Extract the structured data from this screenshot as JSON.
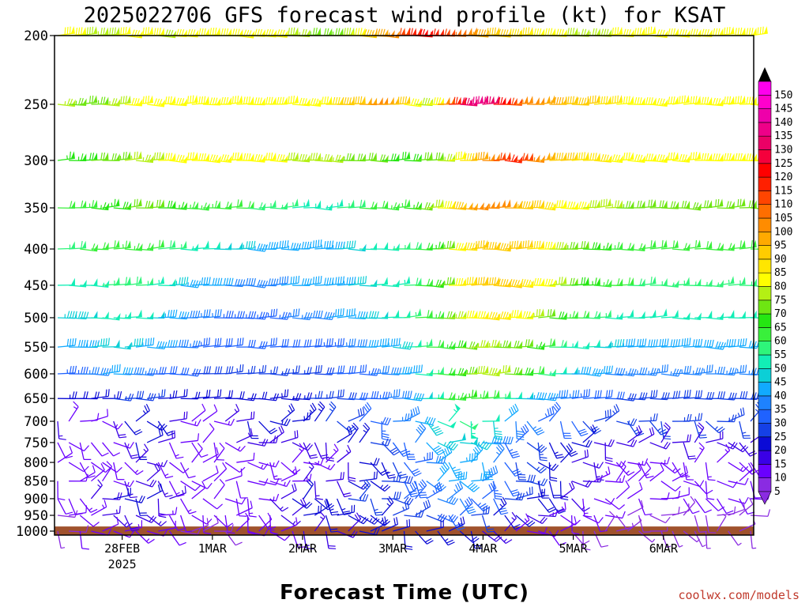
{
  "chart_data": {
    "type": "wind-barb-time-height",
    "title": "2025022706 GFS forecast wind profile (kt) for KSAT",
    "xlabel": "Forecast Time (UTC)",
    "ylabel": "",
    "credit": "coolwx.com/models",
    "x_hours_range": [
      0,
      186
    ],
    "x_ticks": [
      {
        "label": "28FEB",
        "sublabel": "2025",
        "hour": 18
      },
      {
        "label": "1MAR",
        "hour": 42
      },
      {
        "label": "2MAR",
        "hour": 66
      },
      {
        "label": "3MAR",
        "hour": 90
      },
      {
        "label": "4MAR",
        "hour": 114
      },
      {
        "label": "5MAR",
        "hour": 138
      },
      {
        "label": "6MAR",
        "hour": 162
      }
    ],
    "y_levels_hPa": [
      200,
      250,
      300,
      350,
      400,
      450,
      500,
      550,
      600,
      650,
      700,
      750,
      800,
      850,
      900,
      950,
      1000
    ],
    "ylim": [
      200,
      1000
    ],
    "colorbar": {
      "unit": "kt",
      "ticks": [
        5,
        10,
        15,
        20,
        25,
        30,
        35,
        40,
        45,
        50,
        55,
        60,
        65,
        70,
        75,
        80,
        85,
        90,
        95,
        100,
        105,
        110,
        115,
        120,
        125,
        130,
        135,
        140,
        145,
        150
      ],
      "colors": [
        "#8a2be2",
        "#6a00ff",
        "#3a00e6",
        "#0b0bd6",
        "#1540e6",
        "#1f62ff",
        "#1e82ff",
        "#11aaff",
        "#0ccfd6",
        "#12eeb6",
        "#2ef57a",
        "#39f03b",
        "#25e612",
        "#6ee612",
        "#b4f014",
        "#ffff00",
        "#ffe600",
        "#ffcc00",
        "#ffaa00",
        "#ff8c00",
        "#ff6e00",
        "#ff4500",
        "#ff2000",
        "#ff0000",
        "#f5003c",
        "#ea0066",
        "#ee0088",
        "#ee00aa",
        "#ff00cc",
        "#ff00ee"
      ]
    },
    "ground_color": "#a0522d",
    "series": [
      {
        "level": 200,
        "speeds": [
          80,
          80,
          78,
          76,
          78,
          80,
          82,
          82,
          80,
          78,
          80,
          82,
          82,
          80,
          80,
          80,
          80,
          82,
          82,
          80,
          78,
          76,
          74,
          72,
          74,
          78,
          84,
          90,
          96,
          104,
          110,
          118,
          120,
          116,
          112,
          106,
          100,
          96,
          92,
          90,
          88,
          86,
          84,
          82,
          80,
          78,
          76,
          76,
          78,
          80,
          80,
          80,
          80,
          80,
          80,
          80,
          80,
          80,
          80,
          80,
          80,
          80,
          80
        ]
      },
      {
        "level": 250,
        "speeds": [
          76,
          74,
          72,
          74,
          76,
          78,
          80,
          82,
          82,
          80,
          80,
          82,
          84,
          84,
          82,
          82,
          84,
          84,
          82,
          80,
          80,
          80,
          82,
          84,
          86,
          90,
          94,
          98,
          100,
          98,
          90,
          82,
          78,
          84,
          100,
          118,
          130,
          136,
          130,
          120,
          110,
          104,
          100,
          98,
          96,
          94,
          92,
          90,
          88,
          86,
          84,
          82,
          80,
          80,
          80,
          80,
          80,
          80,
          80,
          80,
          80,
          80,
          80
        ]
      },
      {
        "level": 300,
        "speeds": [
          66,
          66,
          68,
          70,
          72,
          74,
          76,
          76,
          78,
          80,
          80,
          80,
          80,
          80,
          80,
          82,
          82,
          82,
          80,
          80,
          78,
          78,
          78,
          76,
          76,
          74,
          72,
          70,
          70,
          68,
          68,
          68,
          70,
          72,
          76,
          80,
          88,
          96,
          104,
          112,
          116,
          112,
          104,
          98,
          94,
          90,
          88,
          86,
          86,
          84,
          82,
          80,
          80,
          80,
          80,
          80,
          80,
          80,
          80,
          80,
          80,
          80,
          80
        ]
      },
      {
        "level": 350,
        "speeds": [
          60,
          62,
          64,
          66,
          66,
          68,
          70,
          70,
          70,
          68,
          66,
          64,
          64,
          64,
          62,
          62,
          60,
          58,
          56,
          56,
          56,
          54,
          54,
          54,
          54,
          56,
          58,
          60,
          62,
          64,
          64,
          66,
          70,
          76,
          84,
          92,
          98,
          102,
          104,
          102,
          98,
          94,
          90,
          86,
          84,
          82,
          80,
          78,
          78,
          76,
          74,
          72,
          72,
          72,
          72,
          72,
          72,
          72,
          72,
          72,
          72,
          72,
          72
        ]
      },
      {
        "level": 400,
        "speeds": [
          56,
          58,
          60,
          62,
          62,
          64,
          64,
          62,
          60,
          58,
          56,
          54,
          52,
          50,
          48,
          48,
          46,
          44,
          44,
          44,
          44,
          44,
          44,
          44,
          44,
          46,
          48,
          50,
          52,
          54,
          56,
          58,
          60,
          66,
          74,
          82,
          88,
          92,
          94,
          94,
          92,
          90,
          86,
          82,
          78,
          74,
          70,
          68,
          66,
          64,
          62,
          60,
          60,
          60,
          60,
          60,
          60,
          60,
          60,
          60,
          60,
          60,
          60
        ]
      },
      {
        "level": 450,
        "speeds": [
          50,
          50,
          52,
          54,
          56,
          58,
          58,
          56,
          54,
          50,
          46,
          44,
          42,
          40,
          40,
          38,
          38,
          38,
          38,
          38,
          40,
          40,
          42,
          42,
          44,
          44,
          46,
          48,
          50,
          52,
          54,
          58,
          62,
          68,
          74,
          80,
          86,
          90,
          92,
          92,
          90,
          88,
          84,
          80,
          76,
          72,
          68,
          66,
          64,
          62,
          60,
          58,
          58,
          56,
          56,
          56,
          56,
          56,
          56,
          56,
          56,
          56,
          56
        ]
      },
      {
        "level": 500,
        "speeds": [
          46,
          46,
          48,
          50,
          52,
          54,
          52,
          50,
          48,
          44,
          40,
          38,
          36,
          36,
          34,
          34,
          34,
          34,
          34,
          34,
          36,
          36,
          38,
          38,
          40,
          42,
          44,
          46,
          48,
          50,
          52,
          56,
          60,
          64,
          70,
          76,
          80,
          84,
          86,
          86,
          84,
          80,
          76,
          72,
          68,
          64,
          60,
          58,
          56,
          54,
          52,
          50,
          50,
          50,
          50,
          50,
          50,
          50,
          50,
          50,
          50,
          50,
          50
        ]
      },
      {
        "level": 550,
        "speeds": [
          40,
          42,
          44,
          46,
          48,
          48,
          46,
          44,
          42,
          40,
          38,
          36,
          34,
          32,
          32,
          30,
          30,
          30,
          30,
          30,
          30,
          32,
          32,
          34,
          34,
          36,
          38,
          40,
          42,
          44,
          46,
          50,
          56,
          60,
          64,
          68,
          72,
          76,
          76,
          74,
          72,
          70,
          66,
          62,
          58,
          54,
          52,
          50,
          48,
          46,
          44,
          42,
          42,
          42,
          42,
          42,
          42,
          42,
          42,
          42,
          42,
          42,
          42
        ]
      },
      {
        "level": 600,
        "speeds": [
          34,
          34,
          36,
          38,
          40,
          40,
          38,
          36,
          34,
          32,
          30,
          30,
          28,
          28,
          28,
          26,
          26,
          26,
          26,
          26,
          26,
          26,
          28,
          28,
          30,
          30,
          32,
          34,
          36,
          38,
          40,
          44,
          50,
          56,
          62,
          68,
          74,
          78,
          78,
          76,
          72,
          68,
          62,
          56,
          52,
          48,
          44,
          42,
          40,
          38,
          36,
          36,
          36,
          36,
          36,
          36,
          36,
          36,
          36,
          36,
          36,
          36,
          36
        ]
      },
      {
        "level": 650,
        "speeds": [
          24,
          22,
          20,
          22,
          24,
          26,
          28,
          28,
          26,
          24,
          22,
          20,
          20,
          22,
          22,
          22,
          22,
          22,
          22,
          24,
          24,
          24,
          26,
          26,
          28,
          28,
          30,
          32,
          34,
          36,
          38,
          42,
          48,
          54,
          60,
          64,
          66,
          64,
          60,
          56,
          52,
          48,
          44,
          40,
          38,
          36,
          34,
          32,
          30,
          30,
          28,
          28,
          28,
          28,
          28,
          28,
          28,
          28,
          28,
          28,
          28,
          28,
          28
        ]
      },
      {
        "level": 700,
        "speeds": [
          16,
          14,
          12,
          12,
          14,
          18,
          22,
          24,
          24,
          22,
          18,
          14,
          12,
          12,
          14,
          16,
          18,
          20,
          22,
          24,
          24,
          24,
          24,
          24,
          26,
          26,
          28,
          30,
          32,
          34,
          36,
          38,
          42,
          46,
          50,
          54,
          56,
          54,
          50,
          46,
          42,
          38,
          36,
          34,
          32,
          30,
          30,
          28,
          28,
          26,
          26,
          26,
          26,
          26,
          26,
          26,
          26,
          26,
          26,
          26,
          26,
          26,
          26
        ]
      },
      {
        "level": 750,
        "speeds": [
          12,
          10,
          10,
          10,
          12,
          14,
          18,
          20,
          20,
          18,
          14,
          12,
          10,
          10,
          12,
          14,
          16,
          18,
          18,
          18,
          18,
          18,
          18,
          18,
          18,
          20,
          22,
          24,
          26,
          28,
          30,
          34,
          38,
          42,
          46,
          48,
          48,
          46,
          42,
          38,
          34,
          30,
          28,
          26,
          24,
          22,
          20,
          20,
          18,
          18,
          18,
          18,
          18,
          18,
          18,
          18,
          18,
          18,
          18,
          18,
          18,
          18,
          18
        ]
      },
      {
        "level": 800,
        "speeds": [
          10,
          10,
          10,
          10,
          10,
          12,
          14,
          16,
          16,
          14,
          12,
          10,
          10,
          10,
          10,
          12,
          12,
          14,
          14,
          14,
          14,
          14,
          14,
          14,
          14,
          16,
          18,
          20,
          22,
          24,
          26,
          30,
          34,
          38,
          42,
          44,
          44,
          42,
          40,
          36,
          32,
          28,
          26,
          24,
          22,
          20,
          18,
          16,
          16,
          14,
          14,
          14,
          14,
          14,
          14,
          14,
          14,
          14,
          14,
          14,
          14,
          14,
          14
        ]
      },
      {
        "level": 850,
        "speeds": [
          10,
          10,
          10,
          10,
          12,
          14,
          16,
          18,
          18,
          16,
          14,
          12,
          10,
          10,
          10,
          10,
          12,
          12,
          12,
          14,
          14,
          14,
          16,
          16,
          18,
          18,
          20,
          22,
          24,
          26,
          28,
          30,
          34,
          38,
          40,
          42,
          42,
          40,
          38,
          34,
          30,
          28,
          26,
          24,
          22,
          20,
          18,
          16,
          14,
          14,
          12,
          12,
          12,
          12,
          12,
          12,
          12,
          12,
          12,
          12,
          12,
          12,
          12
        ]
      },
      {
        "level": 900,
        "speeds": [
          10,
          12,
          14,
          16,
          18,
          20,
          22,
          22,
          20,
          18,
          16,
          14,
          12,
          12,
          12,
          12,
          12,
          14,
          14,
          16,
          18,
          20,
          22,
          22,
          24,
          24,
          26,
          26,
          26,
          28,
          28,
          30,
          32,
          34,
          36,
          36,
          36,
          34,
          32,
          30,
          28,
          26,
          24,
          22,
          20,
          18,
          16,
          14,
          12,
          12,
          10,
          10,
          10,
          10,
          10,
          10,
          10,
          10,
          10,
          10,
          10,
          10,
          10
        ]
      },
      {
        "level": 950,
        "speeds": [
          8,
          10,
          12,
          14,
          16,
          16,
          18,
          18,
          16,
          14,
          12,
          10,
          10,
          10,
          10,
          10,
          12,
          12,
          14,
          14,
          16,
          18,
          20,
          20,
          22,
          22,
          24,
          24,
          24,
          24,
          26,
          26,
          28,
          28,
          30,
          30,
          30,
          28,
          26,
          24,
          22,
          20,
          18,
          16,
          14,
          12,
          12,
          10,
          10,
          10,
          8,
          8,
          8,
          8,
          8,
          8,
          8,
          8,
          8,
          8,
          8,
          8,
          8
        ]
      },
      {
        "level": 1000,
        "speeds": [
          6,
          8,
          10,
          10,
          12,
          12,
          14,
          14,
          12,
          10,
          10,
          8,
          8,
          8,
          8,
          8,
          10,
          10,
          10,
          12,
          12,
          14,
          16,
          16,
          18,
          18,
          18,
          20,
          20,
          20,
          20,
          20,
          22,
          22,
          24,
          24,
          22,
          20,
          18,
          16,
          16,
          14,
          12,
          12,
          10,
          10,
          8,
          8,
          8,
          8,
          6,
          6,
          6,
          6,
          6,
          6,
          6,
          6,
          6,
          6,
          6,
          6,
          6
        ]
      }
    ]
  }
}
